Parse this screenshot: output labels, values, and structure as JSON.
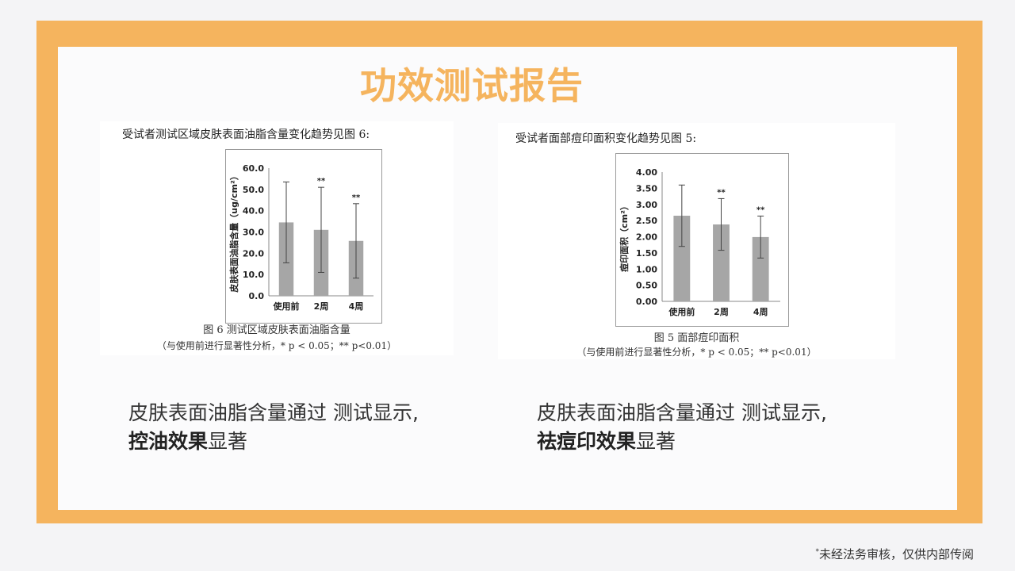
{
  "title": "功效测试报告",
  "left": {
    "caption": "受试者测试区域皮肤表面油脂含量变化趋势见图 6:",
    "fig_title": "图 6   测试区域皮肤表面油脂含量",
    "fig_note": "（与使用前进行显著性分析，* p < 0.05；** p<0.01）",
    "summary_line1": "皮肤表面油脂含量通过 测试显示,",
    "summary_bold": "控油效果",
    "summary_tail": "显著"
  },
  "right": {
    "caption": "受试者面部痘印面积变化趋势见图 5:",
    "fig_title": "图 5   面部痘印面积",
    "fig_note": "（与使用前进行显著性分析，* p < 0.05；** p<0.01）",
    "summary_line1": "皮肤表面油脂含量通过 测试显示,",
    "summary_bold": "祛痘印效果",
    "summary_tail": "显著"
  },
  "footer": {
    "star": "*",
    "text": "未经法务审核，仅供内部传阅"
  },
  "colors": {
    "accent": "#f5b45e",
    "bar": "#a6a6a6"
  },
  "chart_data": [
    {
      "type": "bar",
      "ylabel": "皮肤表面油脂含量（ug/cm²）",
      "categories": [
        "使用前",
        "2周",
        "4周"
      ],
      "values": [
        34.5,
        31.0,
        25.8
      ],
      "error": [
        19.0,
        20.0,
        17.5
      ],
      "significance": [
        "",
        "**",
        "**"
      ],
      "ylim": [
        0,
        60
      ],
      "yticks": [
        "0.0",
        "10.0",
        "20.0",
        "30.0",
        "40.0",
        "50.0",
        "60.0"
      ]
    },
    {
      "type": "bar",
      "ylabel": "痘印面积（cm²）",
      "categories": [
        "使用前",
        "2周",
        "4周"
      ],
      "values": [
        2.65,
        2.38,
        1.99
      ],
      "error": [
        0.95,
        0.8,
        0.65
      ],
      "significance": [
        "",
        "**",
        "**"
      ],
      "ylim": [
        0,
        4
      ],
      "yticks": [
        "0.00",
        "0.50",
        "1.00",
        "1.50",
        "2.00",
        "2.50",
        "3.00",
        "3.50",
        "4.00"
      ]
    }
  ]
}
